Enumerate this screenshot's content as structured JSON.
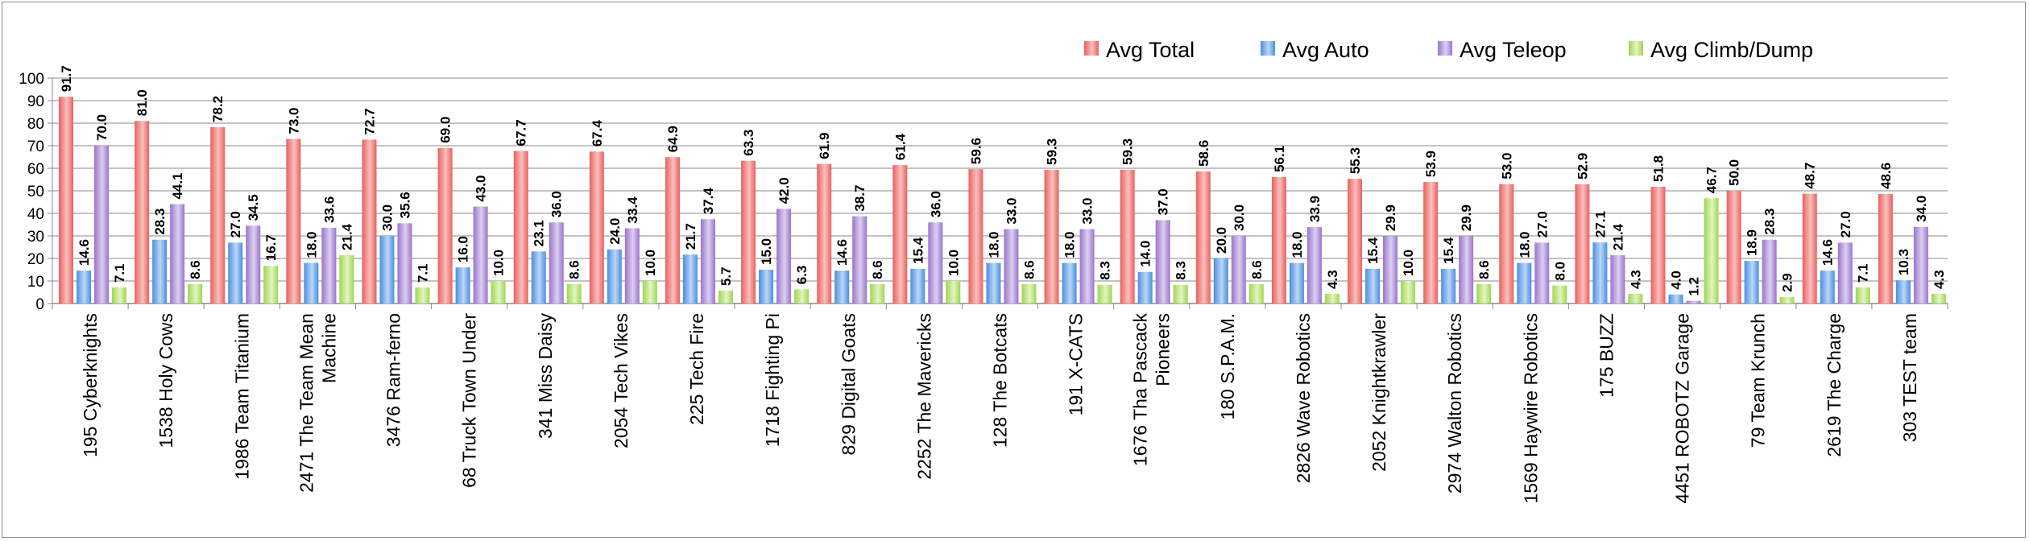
{
  "chart_data": {
    "type": "bar",
    "title": "",
    "xlabel": "",
    "ylabel": "",
    "ylim": [
      0,
      100
    ],
    "yticks": [
      0,
      10,
      20,
      30,
      40,
      50,
      60,
      70,
      80,
      90,
      100
    ],
    "grid": true,
    "legend_position": "top-right",
    "categories": [
      "195 Cyberknights",
      "1538 Holy Cows",
      "1986 Team Titanium",
      "2471 The Team Mean Machine",
      "3476 Ram-ferno",
      "68 Truck Town Under",
      "341 Miss Daisy",
      "2054 Tech Vikes",
      "225 Tech Fire",
      "1718 Fighting Pi",
      "829 Digital Goats",
      "2252 The Mavericks",
      "128 The Botcats",
      "191 X-CATS",
      "1676 Tha Pascack Pioneers",
      "180 S.P.A.M.",
      "2826 Wave Robotics",
      "2052 Knightkrawler",
      "2974 Walton Robotics",
      "1569 Haywire Robotics",
      "175 BUZZ",
      "4451 ROBOTZ Garage",
      "79 Team Krunch",
      "2619 The Charge",
      "303 TEST team"
    ],
    "category_lines": [
      [
        "195 Cyberknights"
      ],
      [
        "1538 Holy Cows"
      ],
      [
        "1986 Team Titanium"
      ],
      [
        "2471 The Team Mean",
        "Machine"
      ],
      [
        "3476 Ram-ferno"
      ],
      [
        "68 Truck Town Under"
      ],
      [
        "341 Miss Daisy"
      ],
      [
        "2054 Tech Vikes"
      ],
      [
        "225 Tech Fire"
      ],
      [
        "1718 Fighting Pi"
      ],
      [
        "829 Digital Goats"
      ],
      [
        "2252 The Mavericks"
      ],
      [
        "128 The Botcats"
      ],
      [
        "191 X-CATS"
      ],
      [
        "1676 Tha Pascack",
        "Pioneers"
      ],
      [
        "180 S.P.A.M."
      ],
      [
        "2826 Wave Robotics"
      ],
      [
        "2052 Knightkrawler"
      ],
      [
        "2974 Walton Robotics"
      ],
      [
        "1569 Haywire Robotics"
      ],
      [
        "175 BUZZ"
      ],
      [
        "4451 ROBOTZ Garage"
      ],
      [
        "79 Team Krunch"
      ],
      [
        "2619 The Charge"
      ],
      [
        "303 TEST team"
      ]
    ],
    "series": [
      {
        "name": "Avg Total",
        "color": "#e8615f",
        "light": "#fbbfbd",
        "values": [
          91.7,
          81.0,
          78.2,
          73.0,
          72.7,
          69.0,
          67.7,
          67.4,
          64.9,
          63.3,
          61.9,
          61.4,
          59.6,
          59.3,
          59.3,
          58.6,
          56.1,
          55.3,
          53.9,
          53.0,
          52.9,
          51.8,
          50.0,
          48.7,
          48.6
        ]
      },
      {
        "name": "Avg Auto",
        "color": "#4a8fe0",
        "light": "#bcd7f6",
        "values": [
          14.6,
          28.3,
          27.0,
          18.0,
          30.0,
          16.0,
          23.1,
          24.0,
          21.7,
          15.0,
          14.6,
          15.4,
          18.0,
          18.0,
          14.0,
          20.0,
          18.0,
          15.4,
          15.4,
          18.0,
          27.1,
          4.0,
          18.9,
          14.6,
          10.3
        ]
      },
      {
        "name": "Avg Teleop",
        "color": "#9a74cc",
        "light": "#dccff0",
        "values": [
          70.0,
          44.1,
          34.5,
          33.6,
          35.6,
          43.0,
          36.0,
          33.4,
          37.4,
          42.0,
          38.7,
          36.0,
          33.0,
          33.0,
          37.0,
          30.0,
          33.9,
          29.9,
          29.9,
          27.0,
          21.4,
          1.2,
          28.3,
          27.0,
          34.0
        ]
      },
      {
        "name": "Avg Climb/Dump",
        "color": "#9fd651",
        "light": "#e2f5c2",
        "values": [
          7.1,
          8.6,
          16.7,
          21.4,
          7.1,
          10.0,
          8.6,
          10.0,
          5.7,
          6.3,
          8.6,
          10.0,
          8.6,
          8.3,
          8.3,
          8.6,
          4.3,
          10.0,
          8.6,
          8.0,
          4.3,
          46.7,
          2.9,
          7.1,
          4.3
        ]
      }
    ]
  }
}
